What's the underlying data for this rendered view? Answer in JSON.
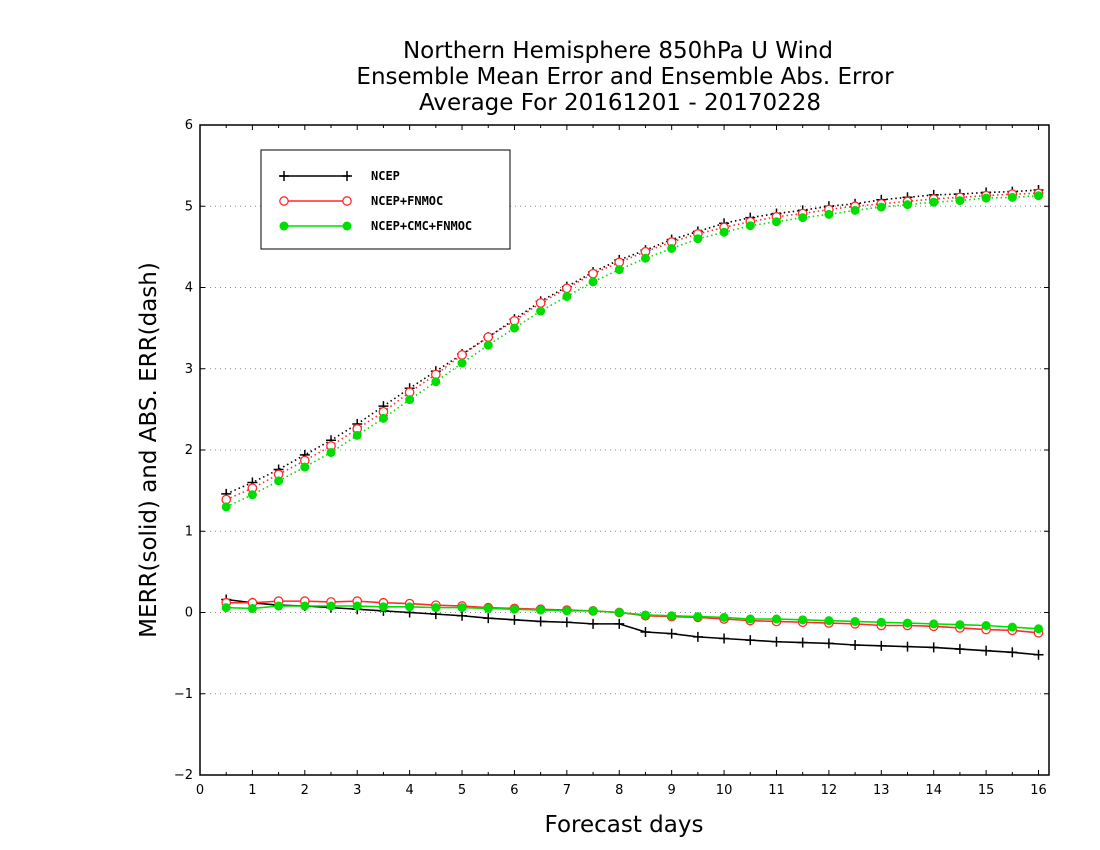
{
  "chart_data": {
    "type": "line",
    "title_lines": [
      "Northern Hemisphere 850hPa U Wind",
      "Ensemble Mean Error and Ensemble Abs. Error",
      "Average For 20161201 - 20170228"
    ],
    "xlabel": "Forecast days",
    "ylabel": "MERR(solid) and ABS. ERR(dash)",
    "xlim": [
      0,
      16.2
    ],
    "ylim": [
      -2,
      6
    ],
    "xticks": [
      "0",
      "1",
      "2",
      "3",
      "4",
      "5",
      "6",
      "7",
      "8",
      "9",
      "10",
      "11",
      "12",
      "13",
      "14",
      "15",
      "16"
    ],
    "yticks": [
      "6",
      "5",
      "4",
      "3",
      "2",
      "1",
      "0",
      "−1",
      "−2"
    ],
    "grid": "horizontal dotted",
    "legend_position": "top-left",
    "x": [
      0.5,
      1,
      1.5,
      2,
      2.5,
      3,
      3.5,
      4,
      4.5,
      5,
      5.5,
      6,
      6.5,
      7,
      7.5,
      8,
      8.5,
      9,
      9.5,
      10,
      10.5,
      11,
      11.5,
      12,
      12.5,
      13,
      13.5,
      14,
      14.5,
      15,
      15.5,
      16
    ],
    "series": [
      {
        "name": "NCEP",
        "color": "#000000",
        "marker": "plus",
        "merr": [
          0.16,
          0.12,
          0.09,
          0.08,
          0.06,
          0.04,
          0.02,
          0.0,
          -0.02,
          -0.04,
          -0.07,
          -0.09,
          -0.11,
          -0.12,
          -0.14,
          -0.14,
          -0.24,
          -0.26,
          -0.3,
          -0.32,
          -0.34,
          -0.36,
          -0.37,
          -0.38,
          -0.4,
          -0.41,
          -0.42,
          -0.43,
          -0.45,
          -0.47,
          -0.49,
          -0.52
        ],
        "abs_err": [
          1.46,
          1.6,
          1.76,
          1.94,
          2.12,
          2.32,
          2.54,
          2.76,
          2.97,
          3.18,
          3.39,
          3.61,
          3.83,
          4.01,
          4.19,
          4.34,
          4.46,
          4.59,
          4.69,
          4.79,
          4.86,
          4.91,
          4.95,
          5.0,
          5.03,
          5.08,
          5.11,
          5.14,
          5.15,
          5.17,
          5.18,
          5.2
        ]
      },
      {
        "name": "NCEP+FNMOC",
        "color": "#ff2a2a",
        "marker": "open-circle",
        "merr": [
          0.12,
          0.12,
          0.14,
          0.14,
          0.13,
          0.14,
          0.12,
          0.11,
          0.09,
          0.08,
          0.06,
          0.05,
          0.04,
          0.03,
          0.02,
          0.0,
          -0.04,
          -0.05,
          -0.06,
          -0.08,
          -0.1,
          -0.11,
          -0.12,
          -0.13,
          -0.14,
          -0.16,
          -0.16,
          -0.17,
          -0.19,
          -0.21,
          -0.22,
          -0.25
        ],
        "abs_err": [
          1.39,
          1.53,
          1.7,
          1.87,
          2.05,
          2.26,
          2.47,
          2.71,
          2.93,
          3.17,
          3.39,
          3.59,
          3.81,
          3.99,
          4.17,
          4.31,
          4.44,
          4.56,
          4.66,
          4.74,
          4.81,
          4.87,
          4.91,
          4.96,
          5.0,
          5.03,
          5.06,
          5.09,
          5.11,
          5.13,
          5.15,
          5.16
        ]
      },
      {
        "name": "NCEP+CMC+FNMOC",
        "color": "#00dd00",
        "marker": "filled-circle",
        "merr": [
          0.06,
          0.05,
          0.08,
          0.08,
          0.08,
          0.08,
          0.07,
          0.07,
          0.06,
          0.06,
          0.05,
          0.04,
          0.03,
          0.02,
          0.02,
          0.0,
          -0.03,
          -0.04,
          -0.05,
          -0.06,
          -0.08,
          -0.08,
          -0.09,
          -0.1,
          -0.11,
          -0.12,
          -0.13,
          -0.14,
          -0.15,
          -0.16,
          -0.18,
          -0.2
        ],
        "abs_err": [
          1.3,
          1.45,
          1.62,
          1.79,
          1.97,
          2.18,
          2.39,
          2.62,
          2.84,
          3.07,
          3.29,
          3.5,
          3.71,
          3.89,
          4.07,
          4.22,
          4.36,
          4.48,
          4.6,
          4.68,
          4.76,
          4.81,
          4.86,
          4.9,
          4.95,
          4.99,
          5.02,
          5.05,
          5.07,
          5.1,
          5.11,
          5.13
        ]
      }
    ]
  }
}
